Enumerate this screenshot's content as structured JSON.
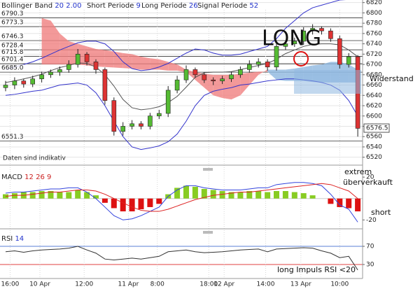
{
  "chart_data": [
    {
      "type": "candlestick",
      "indicator": {
        "name": "Bollinger Band",
        "period": 20,
        "deviation": "2.00",
        "params": [
          {
            "name": "Short Periode",
            "value": 9
          },
          {
            "name": "Long Periode",
            "value": 26
          },
          {
            "name": "Signal Periode",
            "value": 52
          }
        ]
      },
      "open": [
        6655,
        6660,
        6668,
        6662,
        6672,
        6680,
        6685,
        6690,
        6700,
        6720,
        6705,
        6690,
        6630,
        6570,
        6580,
        6585,
        6580,
        6600,
        6605,
        6650,
        6670,
        6690,
        6680,
        6670,
        6668,
        6672,
        6680,
        6690,
        6700,
        6705,
        6695,
        6735,
        6740,
        6745,
        6765,
        6770,
        6765,
        6750,
        6700,
        6715
      ],
      "high": [
        6668,
        6675,
        6672,
        6678,
        6686,
        6690,
        6696,
        6708,
        6730,
        6724,
        6710,
        6694,
        6636,
        6588,
        6592,
        6590,
        6606,
        6612,
        6658,
        6678,
        6698,
        6694,
        6684,
        6675,
        6678,
        6686,
        6696,
        6708,
        6712,
        6710,
        6742,
        6746,
        6752,
        6772,
        6778,
        6774,
        6770,
        6756,
        6722,
        6718
      ],
      "low": [
        6648,
        6652,
        6655,
        6656,
        6665,
        6674,
        6678,
        6684,
        6694,
        6698,
        6682,
        6622,
        6562,
        6562,
        6574,
        6574,
        6574,
        6594,
        6598,
        6644,
        6664,
        6674,
        6664,
        6660,
        6662,
        6666,
        6674,
        6684,
        6694,
        6688,
        6688,
        6728,
        6734,
        6738,
        6758,
        6758,
        6744,
        6692,
        6694,
        6560
      ],
      "close": [
        6660,
        6668,
        6662,
        6672,
        6680,
        6685,
        6690,
        6700,
        6720,
        6705,
        6690,
        6630,
        6570,
        6580,
        6585,
        6580,
        6600,
        6605,
        6650,
        6670,
        6690,
        6680,
        6670,
        6668,
        6672,
        6680,
        6690,
        6700,
        6705,
        6695,
        6735,
        6740,
        6745,
        6765,
        6770,
        6765,
        6750,
        6700,
        6715,
        6576
      ],
      "up_color": "#55bb33",
      "down_color": "#dd3333",
      "series": [
        {
          "name": "upper",
          "color": "#3333cc",
          "values": [
            6690,
            6695,
            6700,
            6705,
            6712,
            6720,
            6728,
            6735,
            6742,
            6745,
            6745,
            6740,
            6725,
            6705,
            6692,
            6688,
            6690,
            6695,
            6702,
            6712,
            6722,
            6730,
            6728,
            6722,
            6718,
            6718,
            6720,
            6725,
            6730,
            6735,
            6750,
            6770,
            6785,
            6800,
            6810,
            6815,
            6820,
            6825,
            6826,
            6830
          ]
        },
        {
          "name": "middle",
          "color": "#555555",
          "values": [
            6665,
            6668,
            6672,
            6676,
            6681,
            6688,
            6694,
            6698,
            6703,
            6702,
            6695,
            6680,
            6658,
            6632,
            6616,
            6612,
            6614,
            6618,
            6626,
            6638,
            6656,
            6675,
            6684,
            6685,
            6685,
            6686,
            6690,
            6694,
            6698,
            6702,
            6710,
            6721,
            6728,
            6735,
            6739,
            6740,
            6740,
            6738,
            6728,
            6715
          ]
        },
        {
          "name": "lower",
          "color": "#3333cc",
          "values": [
            6640,
            6642,
            6645,
            6648,
            6650,
            6655,
            6660,
            6662,
            6664,
            6660,
            6645,
            6620,
            6590,
            6560,
            6540,
            6535,
            6538,
            6542,
            6550,
            6565,
            6590,
            6620,
            6640,
            6648,
            6652,
            6655,
            6660,
            6662,
            6665,
            6668,
            6670,
            6672,
            6672,
            6670,
            6668,
            6665,
            6660,
            6650,
            6630,
            6600
          ]
        }
      ],
      "cloud": {
        "span_a": [
          null,
          null,
          null,
          null,
          6700,
          6700,
          6700,
          6700,
          6700,
          6698,
          6696,
          6695,
          6694,
          6693,
          6692,
          6690,
          6690,
          6690,
          6688,
          6688,
          6685,
          6670,
          6655,
          6640,
          6635,
          6632,
          6640,
          6660,
          6680,
          6690,
          6690,
          6690,
          6692,
          6695,
          6698,
          6700,
          6705,
          6705,
          6700,
          6690
        ],
        "span_b": [
          null,
          null,
          null,
          null,
          6790,
          6785,
          6760,
          6745,
          6740,
          6735,
          6730,
          6728,
          6725,
          6722,
          6720,
          6715,
          6712,
          6710,
          6705,
          6700,
          6690,
          6685,
          6682,
          6680,
          6680,
          6680,
          6682,
          6684,
          6686,
          6686,
          6670,
          6668,
          6668,
          6668,
          6666,
          6665,
          6665,
          6665,
          6665,
          6665
        ],
        "bear_color": "#f08080",
        "bull_color": "#8fb8e0"
      },
      "levels": [
        6790.3,
        6773.3,
        6746.3,
        6728.4,
        6715.8,
        6701.4,
        {
          "value": 6685,
          "label": "6685.0"
        },
        6551.3
      ],
      "last_price": 6576.5,
      "ylim": [
        6506,
        6825
      ],
      "yticks": [
        6520,
        6540,
        6560,
        6580,
        6600,
        6620,
        6640,
        6660,
        6680,
        6700,
        6720,
        6740,
        6760,
        6780,
        6800,
        6820
      ],
      "grid": true,
      "annotations": {
        "signal": "LONG",
        "resistance": "Widerstand",
        "disclaimer": "Daten sind indikativ"
      }
    },
    {
      "type": "macd",
      "name": "MACD",
      "params": [
        12,
        26,
        9
      ],
      "histogram": [
        4,
        5,
        6,
        6,
        7,
        7,
        6,
        6,
        8,
        6,
        3,
        -4,
        -9,
        -12,
        -12,
        -10,
        -8,
        -5,
        4,
        10,
        12,
        11,
        9,
        8,
        7,
        6,
        6,
        7,
        7,
        6,
        7,
        7,
        6,
        5,
        3,
        0,
        -5,
        -8,
        -9,
        -12
      ],
      "pos_color": "#88cc22",
      "neg_color": "#dd1111",
      "series": [
        {
          "name": "MACD",
          "color": "#3344dd",
          "values": [
            5,
            6,
            6,
            7,
            8,
            9,
            9,
            10,
            10,
            6,
            0,
            -8,
            -16,
            -20,
            -19,
            -16,
            -12,
            -8,
            2,
            8,
            12,
            12,
            10,
            9,
            8,
            8,
            8,
            9,
            10,
            10,
            13,
            14,
            15,
            15,
            14,
            12,
            4,
            -6,
            -10,
            -22
          ]
        },
        {
          "name": "Signal",
          "color": "#dd2222",
          "values": [
            2,
            3,
            3,
            4,
            5,
            6,
            6,
            7,
            8,
            8,
            7,
            4,
            0,
            -4,
            -8,
            -11,
            -12,
            -12,
            -10,
            -7,
            -4,
            -1,
            1,
            3,
            4,
            5,
            6,
            6,
            7,
            8,
            9,
            10,
            11,
            12,
            13,
            14,
            13,
            10,
            7,
            0
          ]
        }
      ],
      "ylim": [
        -27,
        24
      ],
      "yticks": [
        20,
        -20
      ],
      "annotations": {
        "oversold": [
          "extrem",
          "überverkauft"
        ],
        "signal": "short"
      }
    },
    {
      "type": "line",
      "name": "RSI",
      "params": [
        14
      ],
      "series": [
        {
          "name": "RSI",
          "color": "#333333",
          "values": [
            58,
            60,
            57,
            60,
            62,
            63,
            64,
            66,
            70,
            62,
            55,
            42,
            40,
            42,
            44,
            42,
            45,
            48,
            58,
            60,
            62,
            58,
            56,
            57,
            58,
            60,
            62,
            63,
            64,
            58,
            64,
            65,
            66,
            67,
            66,
            60,
            55,
            45,
            48,
            18
          ]
        }
      ],
      "ylim": [
        0,
        100
      ],
      "yticks": [
        70,
        30
      ],
      "guide_colors": [
        "#5a7fd6",
        "#e04040"
      ],
      "xticks": [
        {
          "value": 0.5,
          "label": "16:00"
        },
        {
          "value": 3.8,
          "label": "10 Apr"
        },
        {
          "value": 8.7,
          "label": "12:00"
        },
        {
          "value": 13.6,
          "label": "11 Apr"
        },
        {
          "value": 16.8,
          "label": "8:00"
        },
        {
          "value": 22.5,
          "label": "18:00"
        },
        {
          "value": 24.2,
          "label": "12 Apr"
        },
        {
          "value": 28.8,
          "label": "14:00"
        },
        {
          "value": 32.7,
          "label": "13 Apr"
        },
        {
          "value": 37,
          "label": "10:00"
        }
      ],
      "annotations": {
        "note": "long Impuls RSI <20"
      }
    }
  ]
}
